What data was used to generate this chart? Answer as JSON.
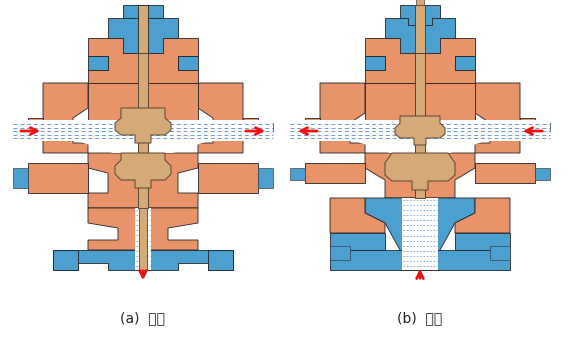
{
  "orange": "#E8936A",
  "blue": "#4BA0D0",
  "tan": "#D4AA78",
  "tan_dark": "#C49A60",
  "red": "#EE1111",
  "blue_line": "#5588CC",
  "bg": "#FFFFFF",
  "label_a": "(a)  分流",
  "label_b": "(b)  合流",
  "label_fontsize": 10,
  "fig_width": 5.72,
  "fig_height": 3.38,
  "dpi": 100
}
